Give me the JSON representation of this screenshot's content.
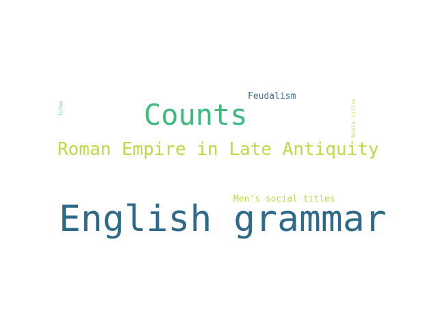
{
  "colors": {
    "background": "#ffffff",
    "dark_blue": "#2f6a8a",
    "green": "#3dba7e",
    "lime": "#b9dc45",
    "steel_blue": "#3d6f8f",
    "teal": "#5aa6b1",
    "pale_yellow": "#d6dc7a"
  },
  "words": {
    "english_grammar": "English grammar",
    "counts": "Counts",
    "roman_empire": "Roman Empire in Late Antiquity",
    "feudalism": "Feudalism",
    "mens_social_titles": "Men's social titles",
    "noble_titles": "Noble titles",
    "titles": "Titles"
  }
}
